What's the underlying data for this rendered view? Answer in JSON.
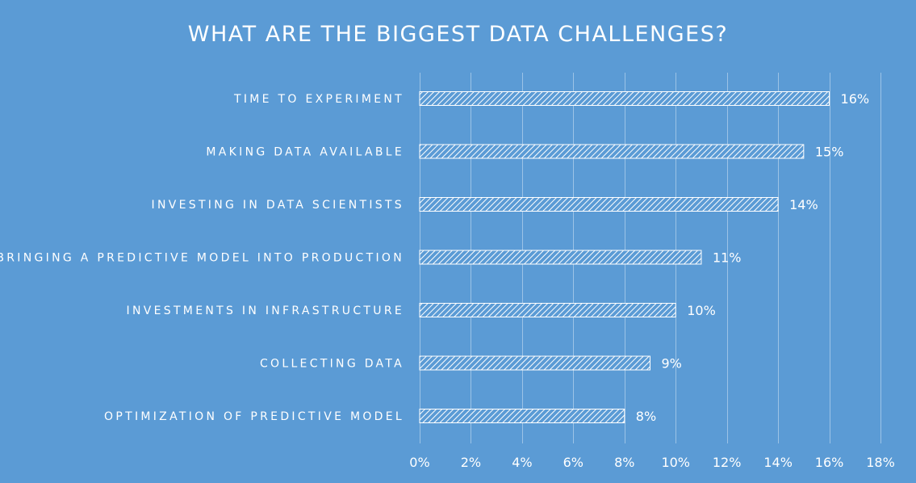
{
  "chart_data": {
    "type": "bar",
    "orientation": "horizontal",
    "title": "WHAT ARE THE BIGGEST DATA CHALLENGES?",
    "categories": [
      "TIME TO EXPERIMENT",
      "MAKING DATA AVAILABLE",
      "INVESTING IN DATA SCIENTISTS",
      "BRINGING A PREDICTIVE MODEL INTO PRODUCTION",
      "INVESTMENTS IN INFRASTRUCTURE",
      "COLLECTING DATA",
      "OPTIMIZATION OF PREDICTIVE MODEL"
    ],
    "values": [
      16,
      15,
      14,
      11,
      10,
      9,
      8
    ],
    "data_labels": [
      "16%",
      "15%",
      "14%",
      "11%",
      "10%",
      "9%",
      "8%"
    ],
    "xlim": [
      0,
      18
    ],
    "x_ticks": [
      0,
      2,
      4,
      6,
      8,
      10,
      12,
      14,
      16,
      18
    ],
    "x_tick_labels": [
      "0%",
      "2%",
      "4%",
      "6%",
      "8%",
      "10%",
      "12%",
      "14%",
      "16%",
      "18%"
    ],
    "xlabel": "",
    "ylabel": "",
    "grid": true,
    "legend": "none",
    "bar_fill": "diagonal-hatch-white",
    "colors": {
      "background": "#5b9bd5",
      "gridline": "#9cc3e6",
      "bar_stroke": "#ffffff",
      "hatch": "#ffffff",
      "text": "#ffffff"
    }
  }
}
